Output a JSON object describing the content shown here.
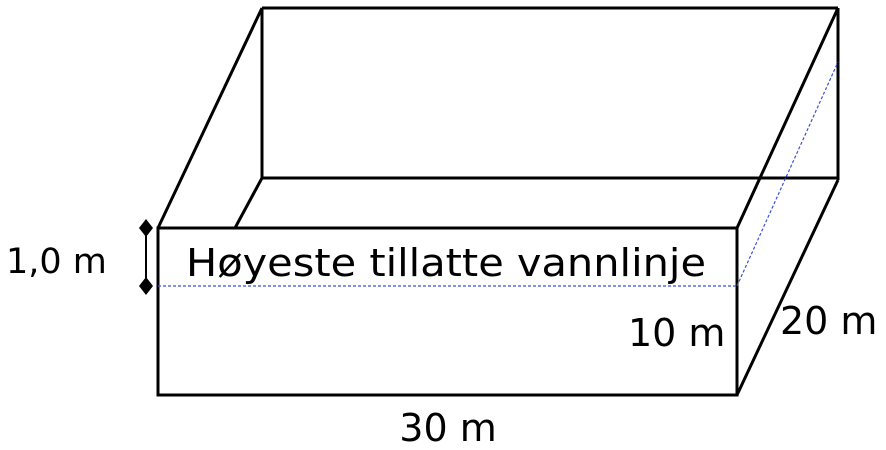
{
  "diagram": {
    "labels": {
      "clearance": "1,0 m",
      "waterline": "Høyeste tillatte vannlinje",
      "height": "10 m",
      "depth": "20 m",
      "length": "30 m"
    },
    "colors": {
      "edge": "#000000",
      "waterline": "#3b4fd8",
      "background": "#ffffff"
    }
  }
}
